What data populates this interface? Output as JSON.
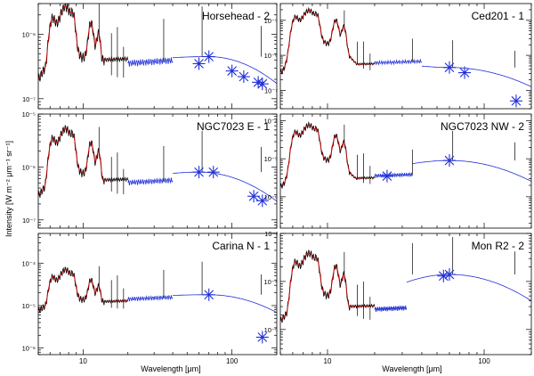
{
  "figure": {
    "ylabel": "Intensity [W m⁻² μm⁻¹ sr⁻¹]",
    "xlabel": "Wavelength [μm]"
  },
  "colors": {
    "model": "#c00000",
    "fit": "#1f2fd6",
    "spectrum": "#000000",
    "photometry": "#1f2fd6"
  },
  "chart_data": [
    {
      "type": "line",
      "title": "Horsehead - 2",
      "xscale": "log",
      "yscale": "log",
      "xlim": [
        5,
        200
      ],
      "ylim": [
        7e-08,
        3e-06
      ],
      "xticks": [
        10,
        100
      ],
      "xticklabels": [
        "10",
        "100"
      ],
      "yticks": [
        1e-07,
        1e-06
      ],
      "yticklabels": [
        "10⁻⁷",
        "10⁻⁶"
      ],
      "model_peak": 2e-06,
      "continuum_level": 3.5e-07,
      "tail_start": 60,
      "photometry": [
        [
          60,
          3.5e-07
        ],
        [
          70,
          4.5e-07
        ],
        [
          100,
          2.7e-07
        ],
        [
          120,
          2.2e-07
        ],
        [
          150,
          1.8e-07
        ],
        [
          160,
          1.7e-07
        ]
      ]
    },
    {
      "type": "line",
      "title": "Ced201 - 1",
      "xscale": "log",
      "yscale": "log",
      "xlim": [
        5,
        200
      ],
      "ylim": [
        3e-08,
        3e-05
      ],
      "xticks": [
        10,
        100
      ],
      "xticklabels": [
        "10",
        "100"
      ],
      "yticks": [
        1e-07,
        1e-06,
        1e-05
      ],
      "yticklabels": [
        "10⁻⁷",
        "10⁻⁶",
        "10⁻⁵"
      ],
      "model_peak": 1.5e-05,
      "continuum_level": 6e-07,
      "tail_start": 60,
      "photometry": [
        [
          60,
          4.5e-07
        ],
        [
          75,
          3.2e-07
        ],
        [
          160,
          5e-08
        ]
      ]
    },
    {
      "type": "line",
      "title": "NGC7023 E - 1",
      "xscale": "log",
      "yscale": "log",
      "xlim": [
        5,
        200
      ],
      "ylim": [
        7e-08,
        1e-05
      ],
      "xticks": [
        10,
        100
      ],
      "xticklabels": [
        "10",
        "100"
      ],
      "yticks": [
        1e-07,
        1e-06,
        1e-05
      ],
      "yticklabels": [
        "10⁻⁷",
        "10⁻⁶",
        "10⁻⁵"
      ],
      "model_peak": 4e-06,
      "continuum_level": 5e-07,
      "tail_start": 45,
      "photometry": [
        [
          60,
          8e-07
        ],
        [
          75,
          8e-07
        ],
        [
          140,
          2.8e-07
        ],
        [
          160,
          2.3e-07
        ]
      ]
    },
    {
      "type": "line",
      "title": "NGC7023 NW - 2",
      "xscale": "log",
      "yscale": "log",
      "xlim": [
        5,
        200
      ],
      "ylim": [
        1.5e-07,
        0.00015
      ],
      "xticks": [
        10,
        100
      ],
      "xticklabels": [
        "10",
        "100"
      ],
      "yticks": [
        1e-06,
        1e-05,
        0.0001
      ],
      "yticklabels": [
        "10⁻⁶",
        "10⁻⁵",
        "10⁻⁴"
      ],
      "model_peak": 6e-05,
      "continuum_level": 3.5e-06,
      "tail_start": 35,
      "photometry": [
        [
          24,
          3.5e-06
        ],
        [
          60,
          9e-06
        ]
      ]
    },
    {
      "type": "line",
      "title": "Carina N - 1",
      "xscale": "log",
      "yscale": "log",
      "xlim": [
        5,
        200
      ],
      "ylim": [
        7e-07,
        0.0005
      ],
      "xticks": [
        10,
        100
      ],
      "xticklabels": [
        "10",
        "100"
      ],
      "yticks": [
        1e-06,
        1e-05,
        0.0001
      ],
      "yticklabels": [
        "10⁻⁶",
        "10⁻⁵",
        "10⁻⁴"
      ],
      "model_peak": 5e-05,
      "continuum_level": 1.4e-05,
      "tail_start": 40,
      "photometry": [
        [
          70,
          1.8e-05
        ],
        [
          160,
          1.8e-06
        ]
      ]
    },
    {
      "type": "line",
      "title": "Mon R2 - 2",
      "xscale": "log",
      "yscale": "log",
      "xlim": [
        5,
        200
      ],
      "ylim": [
        3e-06,
        0.001
      ],
      "xticks": [
        10,
        100
      ],
      "xticklabels": [
        "10",
        "100"
      ],
      "yticks": [
        1e-05,
        0.0001,
        0.001
      ],
      "yticklabels": [
        "10⁻⁵",
        "10⁻⁴",
        "10⁻³"
      ],
      "model_peak": 0.0003,
      "continuum_level": 2.6e-05,
      "tail_start": 32,
      "photometry": [
        [
          55,
          0.00013
        ],
        [
          60,
          0.00014
        ]
      ]
    }
  ]
}
